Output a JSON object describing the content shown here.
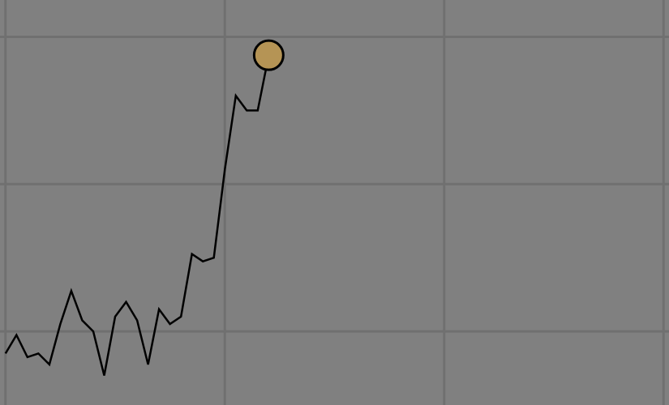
{
  "chart_data": {
    "type": "line",
    "title": "",
    "xlabel": "",
    "ylabel": "",
    "grid": true,
    "legend": "none",
    "x": [
      1,
      2,
      3,
      4,
      5,
      6,
      7,
      8,
      9,
      10,
      11,
      12,
      13,
      14,
      15,
      16,
      17,
      18,
      19,
      20,
      21,
      22,
      23,
      24,
      25
    ],
    "series": [
      {
        "values": [
          7.0,
          9.5,
          6.5,
          7.0,
          5.5,
          11.0,
          15.5,
          11.5,
          10.0,
          4.0,
          12.0,
          14.0,
          11.5,
          5.5,
          13.0,
          11.0,
          12.0,
          20.5,
          19.5,
          20.0,
          32.0,
          42.0,
          40.0,
          40.0,
          47.5
        ],
        "color": "#000000"
      }
    ],
    "marker": {
      "at": "last",
      "color": "#b59455",
      "edge_color": "#000000"
    },
    "xlim": [
      0.5,
      61.5
    ],
    "ylim": [
      0,
      55
    ],
    "x_gridlines": [
      1,
      21,
      41,
      61
    ],
    "y_gridlines": [
      10,
      30,
      50
    ],
    "background": "#808080",
    "grid_color": "#707070"
  }
}
